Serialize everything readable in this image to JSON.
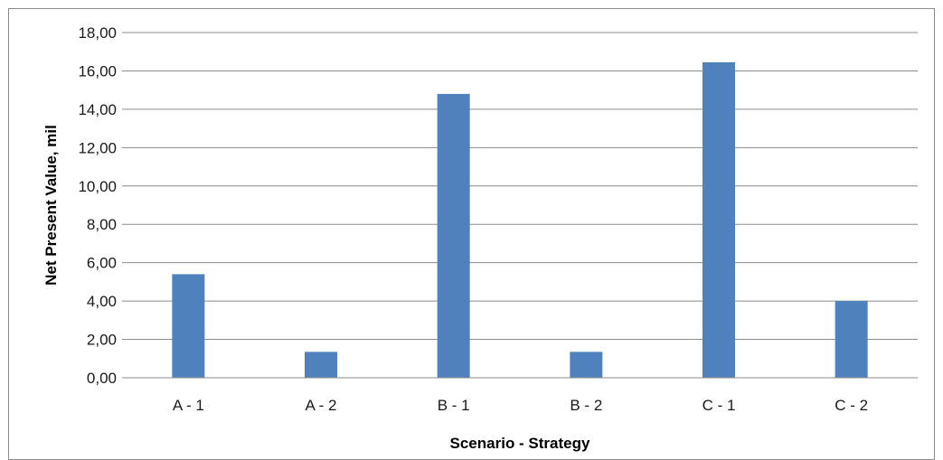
{
  "chart_data": {
    "type": "bar",
    "title": "",
    "xlabel": "Scenario - Strategy",
    "ylabel": "Net Present Value, mil",
    "categories": [
      "A - 1",
      "A - 2",
      "B - 1",
      "B - 2",
      "C - 1",
      "C - 2"
    ],
    "series": [
      {
        "values": [
          5.4,
          1.35,
          14.8,
          1.35,
          16.45,
          4.0
        ]
      }
    ],
    "ylim": [
      0,
      18
    ],
    "ytick_step": 2,
    "ytick_labels": [
      "0,00",
      "2,00",
      "4,00",
      "6,00",
      "8,00",
      "10,00",
      "12,00",
      "14,00",
      "16,00",
      "18,00"
    ],
    "grid": true,
    "legend": "none",
    "colors": {
      "bar": "#4f81bd",
      "grid": "#8c8c8c"
    }
  }
}
